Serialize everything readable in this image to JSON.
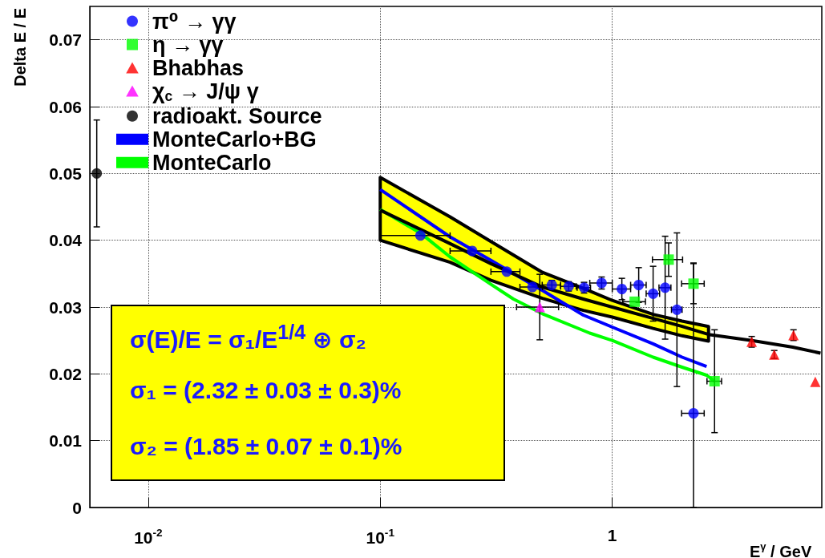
{
  "chart_data": {
    "type": "scatter",
    "xlabel": "E$^{γ}$ / GeV",
    "ylabel": "Delta E / E",
    "log": "x",
    "xlim": [
      0.0056,
      8
    ],
    "xticks": [
      {
        "value": 0.01,
        "label": "10$^{-2}$"
      },
      {
        "value": 0.1,
        "label": "10$^{-1}$"
      },
      1
    ],
    "ylim": [
      0,
      0.075
    ],
    "yticks": [
      0,
      0.01,
      0.02,
      0.03,
      0.04,
      0.05,
      0.06,
      0.07
    ],
    "grid": true,
    "legend": "top left",
    "annotations": [
      "σ(E)/E = σ₁/E$^{1/4}$ ⊕ σ₂",
      "σ₁ = (2.32 ± 0.03 ± 0.3)%",
      "σ₂ = (1.85 ± 0.07 ± 0.1)%"
    ],
    "series": [
      {
        "name": "π⁰ → γγ",
        "marker": "circle",
        "color": "#0000ff",
        "x": [
          0.149,
          0.249,
          0.351,
          0.453,
          0.549,
          0.649,
          0.756,
          0.9,
          1.1,
          1.3,
          1.5,
          1.69,
          1.9,
          2.24
        ],
        "values": [
          0.0407,
          0.0384,
          0.0353,
          0.033,
          0.0333,
          0.0331,
          0.0329,
          0.0336,
          0.0327,
          0.0333,
          0.032,
          0.0329,
          0.0296,
          0.0141
        ],
        "errors": [
          null,
          null,
          null,
          null,
          0.0007,
          0.0007,
          0.0008,
          0.0009,
          0.0016,
          0.0026,
          0.0041,
          0.0077,
          0.0115,
          [
            0,
            0.0366
          ]
        ],
        "xerrors": [
          [
            0.1,
            0.2
          ],
          [
            0.2,
            0.3
          ],
          [
            0.3,
            0.4
          ],
          [
            0.4,
            0.5
          ],
          0.05,
          0.05,
          0.05,
          0.1,
          0.1,
          0.1,
          0.1,
          0.1,
          0.1,
          0.25
        ]
      },
      {
        "name": "η → γγ",
        "marker": "square",
        "color": "#00ff00",
        "x": [
          1.25,
          1.75,
          2.24,
          2.76
        ],
        "values": [
          0.0308,
          0.0371,
          0.0335,
          0.0189
        ],
        "errors": [
          null,
          0.0025,
          0.003,
          0.0077
        ],
        "xerrors": [
          0.14,
          0.26,
          0.25,
          0.2
        ]
      },
      {
        "name": "Bhabhas",
        "marker": "triangle",
        "color": "#ff0000",
        "x": [
          3.99,
          4.99,
          6.04,
          7.5
        ],
        "values": [
          0.0248,
          0.0229,
          0.0258,
          0.0188
        ],
        "errors": [
          0.0008,
          0.0006,
          0.0008,
          null
        ]
      },
      {
        "name": "χ$_{c}$ → J/ψ γ",
        "marker": "triangle",
        "color": "#ff00ff",
        "x": [
          0.487
        ],
        "values": [
          0.03
        ],
        "errors": [
          0.0049
        ],
        "xerrors": [
          0.1
        ]
      },
      {
        "name": "radioakt. Source",
        "marker": "circle",
        "color": "#000000",
        "x": [
          0.006
        ],
        "values": [
          0.05
        ],
        "errors": [
          0.008
        ]
      },
      {
        "name": "MonteCarlo+BG",
        "type": "line",
        "color": "#0000ff",
        "x": [
          0.1,
          0.2,
          0.3,
          0.5,
          0.75,
          1,
          1.5,
          2,
          2.55
        ],
        "values": [
          0.0476,
          0.0405,
          0.037,
          0.0325,
          0.0288,
          0.027,
          0.0245,
          0.0225,
          0.0211
        ]
      },
      {
        "name": "MonteCarlo",
        "type": "line",
        "color": "#00ff00",
        "x": [
          0.1,
          0.15,
          0.2,
          0.3,
          0.375,
          0.5,
          0.8,
          1,
          1.5,
          2,
          2.55,
          2.76
        ],
        "values": [
          0.0446,
          0.041,
          0.0375,
          0.0334,
          0.0312,
          0.029,
          0.0261,
          0.025,
          0.0225,
          0.021,
          0.0198,
          0.0189
        ]
      },
      {
        "type": "line",
        "color": "#000000",
        "x": [
          0.1,
          0.2,
          0.3,
          0.5,
          0.75,
          1,
          1.5,
          2,
          2.6,
          4,
          6,
          7.9
        ],
        "values": [
          0.0445,
          0.0395,
          0.0365,
          0.033,
          0.0312,
          0.03,
          0.0283,
          0.0271,
          0.0259,
          0.025,
          0.024,
          0.0231
        ],
        "lower": [
          0.04,
          0.0367,
          0.034,
          0.0313,
          0.0295,
          0.0285,
          0.0268,
          0.0257,
          0.0249,
          null,
          null,
          null
        ],
        "upper": [
          0.0494,
          0.0435,
          0.0398,
          0.0352,
          0.0328,
          0.031,
          0.0289,
          0.0279,
          0.0271,
          null,
          null,
          null
        ]
      }
    ]
  }
}
